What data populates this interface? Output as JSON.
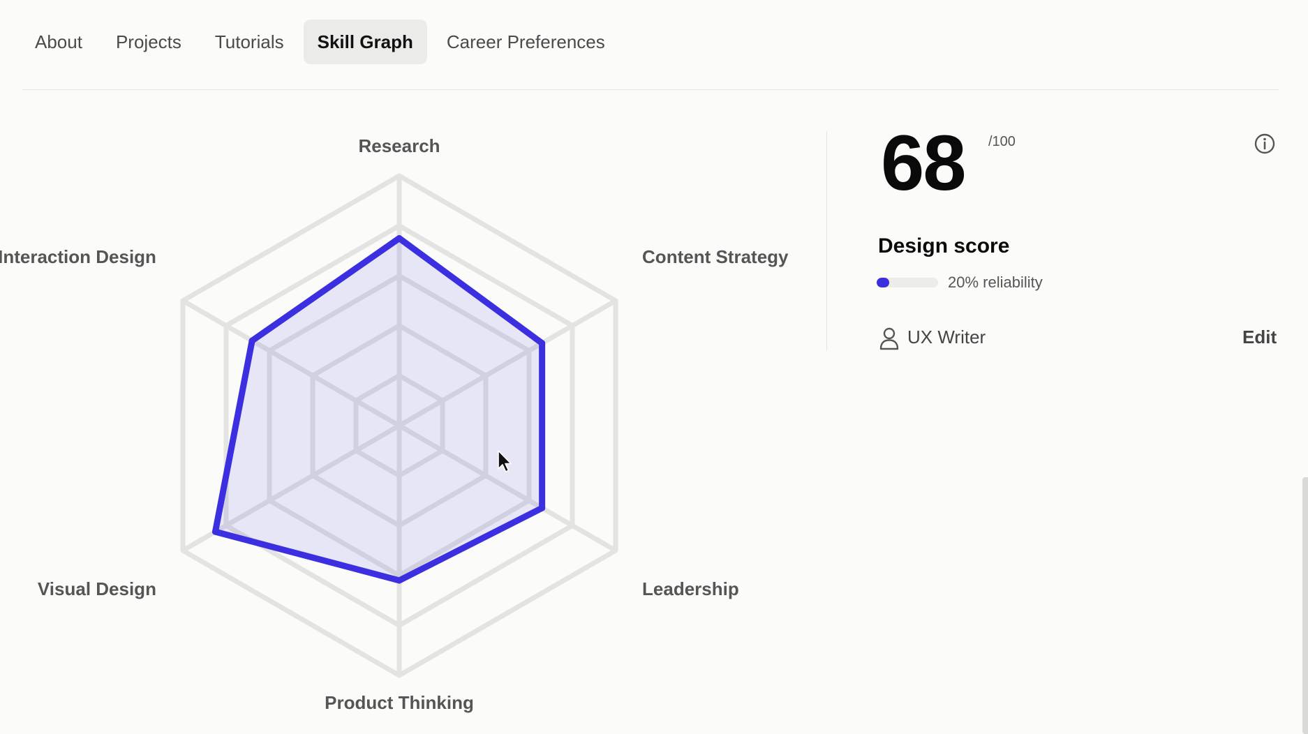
{
  "tabs": [
    {
      "label": "About",
      "active": false
    },
    {
      "label": "Projects",
      "active": false
    },
    {
      "label": "Tutorials",
      "active": false
    },
    {
      "label": "Skill Graph",
      "active": true
    },
    {
      "label": "Career Preferences",
      "active": false
    }
  ],
  "chart_data": {
    "type": "radar",
    "axes": [
      "Research",
      "Content Strategy",
      "Leadership",
      "Product Thinking",
      "Visual Design",
      "Interaction Design"
    ],
    "values": [
      0.75,
      0.66,
      0.66,
      0.62,
      0.85,
      0.68
    ],
    "max": 1,
    "rings": 5,
    "series_color": "#3b2fe0"
  },
  "score": {
    "value": "68",
    "max_label": "/100",
    "title": "Design score",
    "reliability_text": "20% reliability",
    "reliability_fraction": 0.2,
    "role": "UX Writer",
    "edit_label": "Edit"
  },
  "icons": {
    "info": "info-icon",
    "role": "person-icon",
    "cursor": "mouse-pointer-icon"
  },
  "colors": {
    "accent": "#3b2fe0",
    "active_tab_bg": "#ebebea",
    "background": "#fbfbfa"
  }
}
